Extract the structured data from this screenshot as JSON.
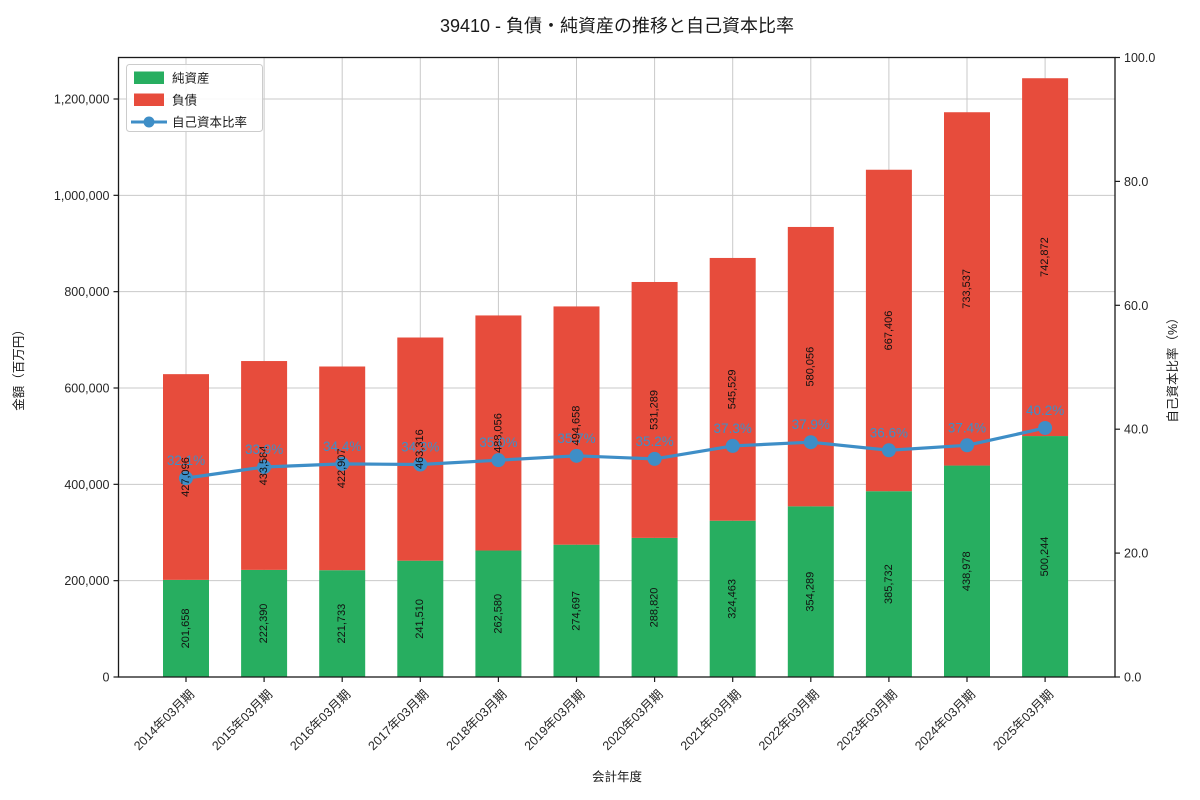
{
  "window": {
    "title": "39410 - 負債・純資産の推移と自己資本比率"
  },
  "colors": {
    "net_assets_green": "#27ae60",
    "liabilities_red": "#e74c3c",
    "ratio_blue": "#3e8ec7",
    "grid_gray": "#c9c9c9",
    "spine_black": "#1a1a1a",
    "background": "#ffffff"
  },
  "chart_data": {
    "type": "bar",
    "subtype": "stacked-bar-with-line-overlay",
    "title": "39410 - 負債・純資産の推移と自己資本比率",
    "xlabel": "会計年度",
    "ylabel_left": "金額（百万円）",
    "ylabel_right": "自己資本比率（%）",
    "grid": true,
    "legend_position": "upper-left",
    "categories": [
      "2014年03月期",
      "2015年03月期",
      "2016年03月期",
      "2017年03月期",
      "2018年03月期",
      "2019年03月期",
      "2020年03月期",
      "2021年03月期",
      "2022年03月期",
      "2023年03月期",
      "2024年03月期",
      "2025年03月期"
    ],
    "series": [
      {
        "name": "純資産",
        "type": "bar",
        "stack_order": 0,
        "color": "#27ae60",
        "values": [
          201658,
          222390,
          221733,
          241510,
          262580,
          274697,
          288820,
          324463,
          354289,
          385732,
          438978,
          500244
        ],
        "value_labels": [
          "201,658",
          "222,390",
          "221,733",
          "241,510",
          "262,580",
          "274,697",
          "288,820",
          "324,463",
          "354,289",
          "385,732",
          "438,978",
          "500,244"
        ]
      },
      {
        "name": "負債",
        "type": "bar",
        "stack_order": 1,
        "color": "#e74c3c",
        "values": [
          427096,
          433584,
          422907,
          463316,
          488056,
          494658,
          531289,
          545529,
          580056,
          667406,
          733537,
          742872
        ],
        "value_labels": [
          "427,096",
          "433,584",
          "422,907",
          "463,316",
          "488,056",
          "494,658",
          "531,289",
          "545,529",
          "580,056",
          "667,406",
          "733,537",
          "742,872"
        ]
      },
      {
        "name": "自己資本比率",
        "type": "line",
        "axis": "right",
        "color": "#3e8ec7",
        "values": [
          32.1,
          33.9,
          34.4,
          34.3,
          35.0,
          35.7,
          35.2,
          37.3,
          37.9,
          36.6,
          37.4,
          40.2
        ],
        "value_labels": [
          "32.1%",
          "33.9%",
          "34.4%",
          "34.3%",
          "35.0%",
          "35.7%",
          "35.2%",
          "37.3%",
          "37.9%",
          "36.6%",
          "37.4%",
          "40.2%"
        ]
      }
    ],
    "left_axis": {
      "min": 0,
      "tick_values": [
        0,
        200000,
        400000,
        600000,
        800000,
        1000000,
        1200000
      ],
      "tick_labels": [
        "0",
        "200,000",
        "400,000",
        "600,000",
        "800,000",
        "1,000,000",
        "1,200,000"
      ]
    },
    "right_axis": {
      "min": 0,
      "max": 100,
      "tick_values": [
        0,
        20,
        40,
        60,
        80,
        100
      ],
      "tick_labels": [
        "0.0",
        "20.0",
        "40.0",
        "60.0",
        "80.0",
        "100.0"
      ]
    }
  }
}
